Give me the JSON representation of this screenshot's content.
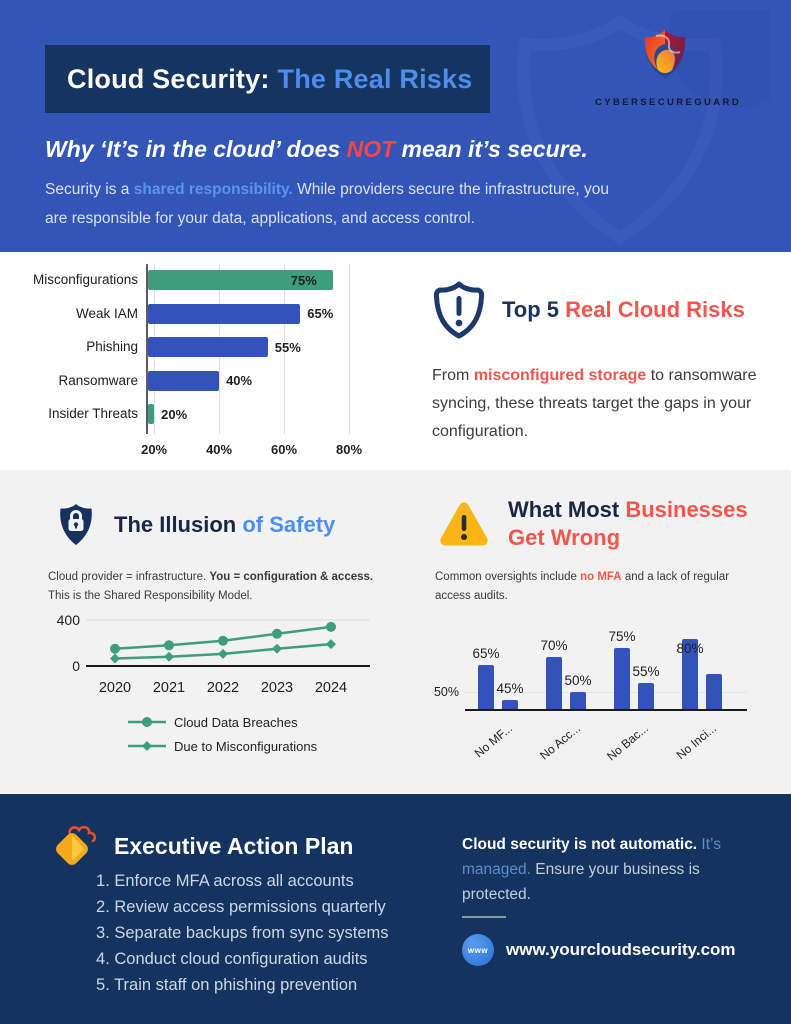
{
  "brand": {
    "name": "CYBERSECUREGUARD"
  },
  "header": {
    "title_part1": "Cloud Security:",
    "title_part2": "The Real Risks",
    "subtitle_pre": "Why ‘It’s in the cloud’ does ",
    "subtitle_em": "NOT",
    "subtitle_post": " mean it’s secure.",
    "body_pre": "Security is a ",
    "body_em": "shared responsibility.",
    "body_post": " While providers secure the infrastructure, you are responsible for your data, applications, and access control."
  },
  "risks": {
    "heading_part1": "Top 5 ",
    "heading_part2": "Real Cloud Risks",
    "body_pre": "From ",
    "body_em": "misconfigured storage",
    "body_post": " to ransomware syncing, these threats target the gaps in your configuration."
  },
  "illusion": {
    "heading_part1": "The Illusion ",
    "heading_part2": "of Safety",
    "caption_pre": "Cloud provider = infrastructure. ",
    "caption_bold": "You = configuration & access.",
    "caption_post": " This is the Shared Responsibility Model."
  },
  "wrong": {
    "heading_part1": "What Most ",
    "heading_part2": "Businesses Get Wrong",
    "caption_pre": "Common oversights include ",
    "caption_em": "no MFA",
    "caption_post": " and a lack of regular access audits."
  },
  "action_plan": {
    "heading": "Executive Action Plan",
    "items": [
      "Enforce MFA across all accounts",
      "Review access permissions quarterly",
      "Separate backups from sync systems",
      "Conduct cloud configuration audits",
      "Train staff on phishing prevention"
    ]
  },
  "footer_note": {
    "bold": "Cloud security is not automatic.",
    "blue": " It’s managed.",
    "rest": " Ensure your business is protected.",
    "website": "www.yourcloudsecurity.com",
    "www_badge": "www"
  },
  "colors": {
    "header_blue": "#3355b8",
    "navy_box": "#15345f",
    "light_blue_accent": "#4c8ded",
    "red_accent": "#f4554d",
    "green_bar": "#3e9d7d",
    "blue_bar": "#3453ba",
    "footer_navy": "#14335f",
    "gray_section": "#f2f2f2"
  },
  "chart_data": [
    {
      "type": "bar",
      "orientation": "horizontal",
      "title": "",
      "categories": [
        "Misconfigurations",
        "Weak IAM",
        "Phishing",
        "Ransomware",
        "Insider Threats"
      ],
      "values": [
        75,
        65,
        55,
        40,
        20
      ],
      "labels": [
        "75%",
        "65%",
        "55%",
        "40%",
        "20%"
      ],
      "bar_colors": [
        "#3e9d7d",
        "#3453ba",
        "#3453ba",
        "#3453ba",
        "#3e9d7d"
      ],
      "x_ticks": [
        "20%",
        "40%",
        "60%",
        "80%"
      ],
      "x_tick_values": [
        20,
        40,
        60,
        80
      ],
      "axis": {
        "xmin": 17.5,
        "xmax": 84,
        "grid": true
      }
    },
    {
      "type": "line",
      "title": "",
      "x": [
        "2020",
        "2021",
        "2022",
        "2023",
        "2024"
      ],
      "series": [
        {
          "name": "Cloud Data Breaches",
          "marker": "circle",
          "values": [
            150,
            180,
            220,
            280,
            340
          ]
        },
        {
          "name": "Due to Misconfigurations",
          "marker": "diamond",
          "values": [
            65,
            80,
            105,
            150,
            190
          ]
        }
      ],
      "line_color": "#3e9d7d",
      "y_ticks": [
        "400",
        "0"
      ],
      "y_tick_values": [
        400,
        0
      ],
      "ylim": [
        0,
        400
      ],
      "legend_position": "bottom"
    },
    {
      "type": "bar",
      "orientation": "vertical",
      "title": "",
      "categories": [
        "No MF...",
        "No Acc...",
        "No Bac...",
        "No Inci..."
      ],
      "series": [
        {
          "values": [
            65,
            70,
            75,
            80
          ],
          "labels": [
            "65%",
            "70%",
            "75%",
            "80%"
          ]
        },
        {
          "values": [
            45,
            50,
            55,
            60
          ],
          "labels": [
            "45%",
            "50%",
            "55%",
            ""
          ]
        }
      ],
      "bar_color": "#3453ba",
      "y_ticks": [
        "50%"
      ],
      "y_tick_values": [
        50
      ],
      "axis": {
        "ymin": 40,
        "ymax": 88,
        "grid": true
      }
    }
  ]
}
